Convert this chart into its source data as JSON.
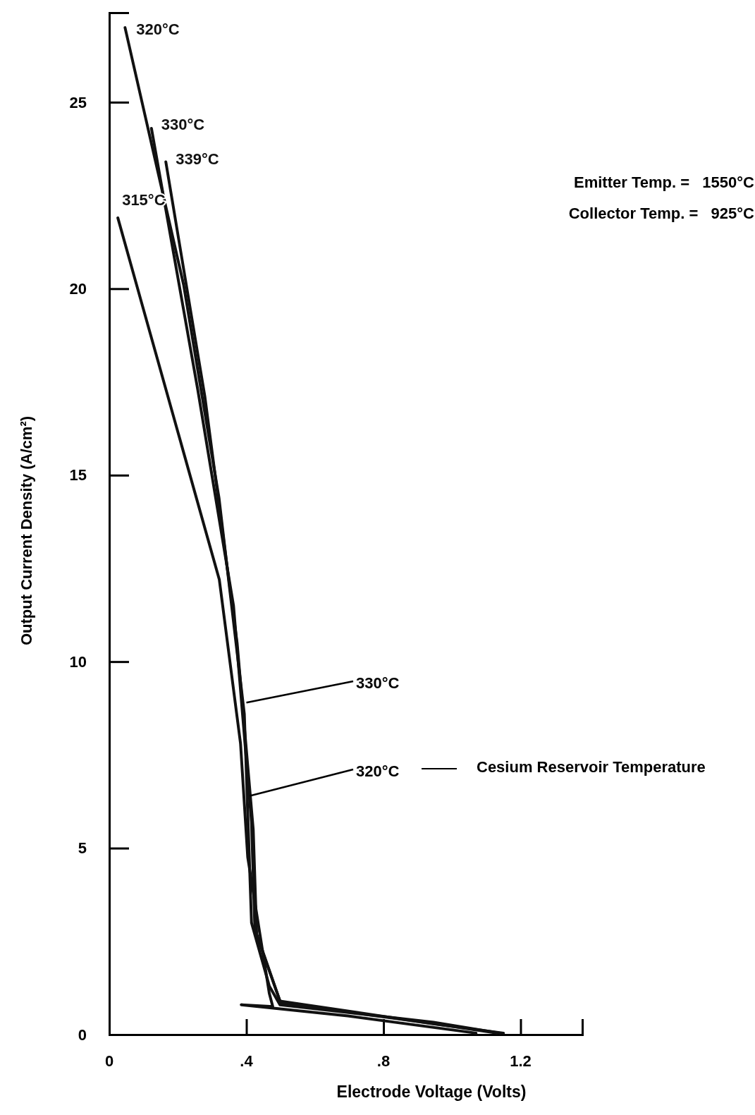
{
  "chart_data": {
    "type": "line",
    "xlabel": "Electrode Voltage (Volts)",
    "ylabel": "Output Current Density (A/cm²)",
    "xlim": [
      0,
      1.38
    ],
    "ylim": [
      0,
      27.4
    ],
    "xticks": [
      0,
      {
        "value": 0.4,
        "label": ".4"
      },
      {
        "value": 0.8,
        "label": ".8"
      },
      1.2
    ],
    "yticks": [
      0,
      5,
      10,
      15,
      20,
      25
    ],
    "grid": false,
    "legend": false,
    "marker": "none",
    "line_style": "solid",
    "series": [
      {
        "name": "320°C",
        "color": "#111111",
        "x": [
          0.046,
          0.217,
          0.32,
          0.394,
          0.415,
          0.467,
          0.498,
          0.946,
          1.14
        ],
        "values": [
          27.0,
          20.1,
          14.4,
          8.6,
          3.0,
          1.3,
          0.8,
          0.33,
          0.04
        ]
      },
      {
        "name": "330°C",
        "color": "#111111",
        "x": [
          0.123,
          0.258,
          0.3625,
          0.415,
          0.425,
          0.498,
          0.946,
          1.15
        ],
        "values": [
          24.3,
          17.3,
          11.5,
          5.7,
          2.8,
          0.9,
          0.29,
          0.04
        ]
      },
      {
        "name": "339°C",
        "color": "#111111",
        "x": [
          0.165,
          0.279,
          0.373,
          0.42,
          0.43,
          0.5,
          0.94,
          1.13
        ],
        "values": [
          23.4,
          17.1,
          10.5,
          5.5,
          2.7,
          0.85,
          0.3,
          0.04
        ]
      },
      {
        "name": "315°C",
        "color": "#111111",
        "x": [
          0.025,
          0.092,
          0.321,
          0.383,
          0.404,
          0.467,
          0.477,
          0.385,
          0.696,
          1.07
        ],
        "values": [
          21.9,
          19.7,
          12.2,
          7.8,
          4.75,
          1.1,
          0.75,
          0.8,
          0.5,
          0.04
        ]
      }
    ],
    "annotations": [
      {
        "text": "330°C",
        "x": 0.4,
        "y": 8.9
      },
      {
        "text": "320°C",
        "x": 0.41,
        "y": 6.4
      },
      "Cesium Reservoir Temperature",
      "Emitter Temp. =   1550°C",
      "Collector Temp. =   925°C"
    ]
  }
}
